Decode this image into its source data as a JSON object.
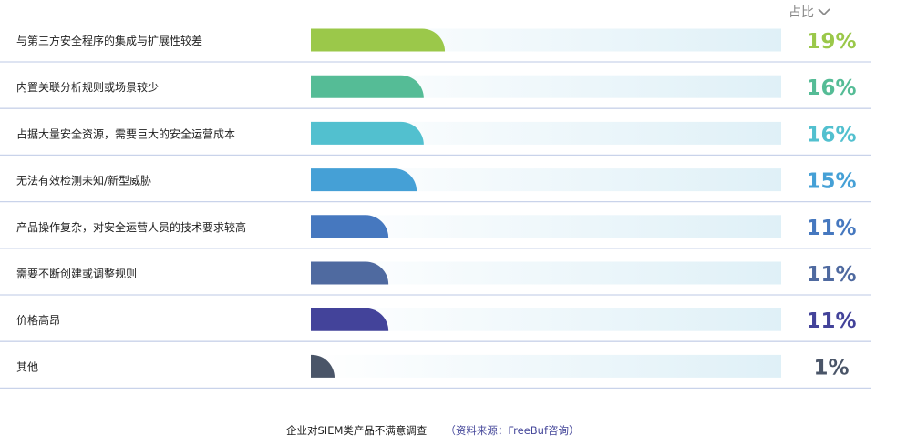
{
  "chart_data": {
    "type": "bar",
    "orientation": "horizontal",
    "column_header": "占比",
    "categories": [
      "与第三方安全程序的集成与扩展性较差",
      "内置关联分析规则或场景较少",
      "占据大量安全资源，需要巨大的安全运营成本",
      "无法有效检测未知/新型威胁",
      "产品操作复杂，对安全运营人员的技术要求较高",
      "需要不断创建或调整规则",
      "价格高昂",
      "其他"
    ],
    "values": [
      19,
      16,
      16,
      15,
      11,
      11,
      11,
      1
    ],
    "value_labels": [
      "19%",
      "16%",
      "16%",
      "15%",
      "11%",
      "11%",
      "11%",
      "1%"
    ],
    "colors": [
      "#9bc84a",
      "#55bc96",
      "#52c0cf",
      "#45a0d6",
      "#4678bf",
      "#4f6aa0",
      "#43439a",
      "#4a5568"
    ],
    "track_color": "#dff0f7",
    "divider_color": "#c9d3ea",
    "caption": "企业对SIEM类产品不满意调查",
    "source": "（资料来源：FreeBuf咨询）"
  }
}
